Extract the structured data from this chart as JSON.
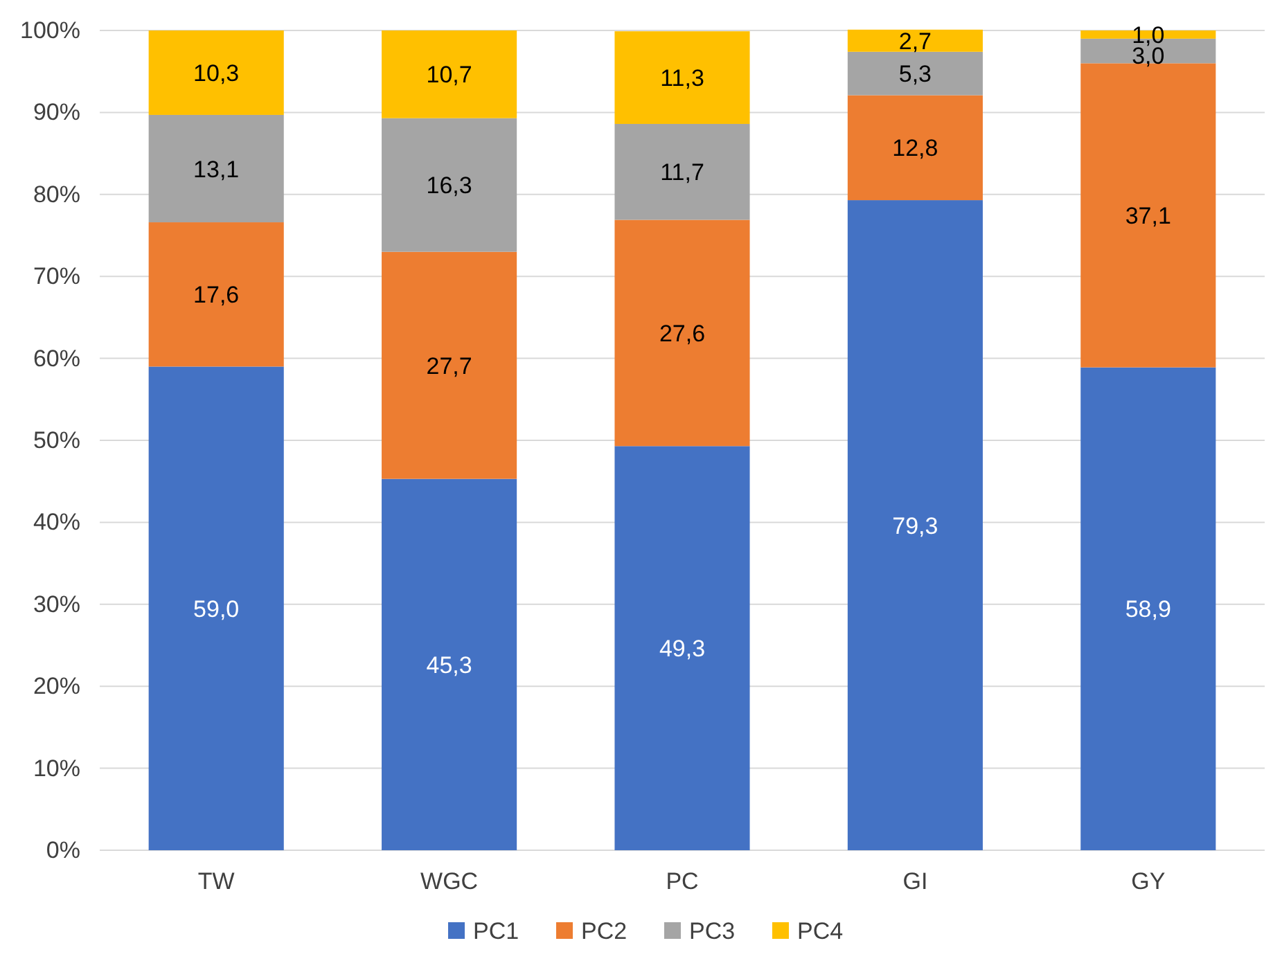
{
  "chart_data": {
    "type": "bar",
    "stacked": true,
    "categories": [
      "TW",
      "WGC",
      "PC",
      "GI",
      "GY"
    ],
    "series": [
      {
        "name": "PC1",
        "color": "#4472c4",
        "values": [
          59.0,
          45.3,
          49.3,
          79.3,
          58.9
        ],
        "value_labels": [
          "59,0",
          "45,3",
          "49,3",
          "79,3",
          "58,9"
        ]
      },
      {
        "name": "PC2",
        "color": "#ed7d31",
        "values": [
          17.6,
          27.7,
          27.6,
          12.8,
          37.1
        ],
        "value_labels": [
          "17,6",
          "27,7",
          "27,6",
          "12,8",
          "37,1"
        ]
      },
      {
        "name": "PC3",
        "color": "#a5a5a5",
        "values": [
          13.1,
          16.3,
          11.7,
          5.3,
          3.0
        ],
        "value_labels": [
          "13,1",
          "16,3",
          "11,7",
          "5,3",
          "3,0"
        ]
      },
      {
        "name": "PC4",
        "color": "#ffc000",
        "values": [
          10.3,
          10.7,
          11.3,
          2.7,
          1.0
        ],
        "value_labels": [
          "10,3",
          "10,7",
          "11,3",
          "2,7",
          "1,0"
        ]
      }
    ],
    "ylim": [
      0,
      100
    ],
    "yticks": [
      {
        "value": 0,
        "label": "0%"
      },
      {
        "value": 10,
        "label": "10%"
      },
      {
        "value": 20,
        "label": "20%"
      },
      {
        "value": 30,
        "label": "30%"
      },
      {
        "value": 40,
        "label": "40%"
      },
      {
        "value": 50,
        "label": "50%"
      },
      {
        "value": 60,
        "label": "60%"
      },
      {
        "value": 70,
        "label": "70%"
      },
      {
        "value": 80,
        "label": "80%"
      },
      {
        "value": 90,
        "label": "90%"
      },
      {
        "value": 100,
        "label": "100%"
      }
    ],
    "grid": "y",
    "legend": "bottom"
  }
}
